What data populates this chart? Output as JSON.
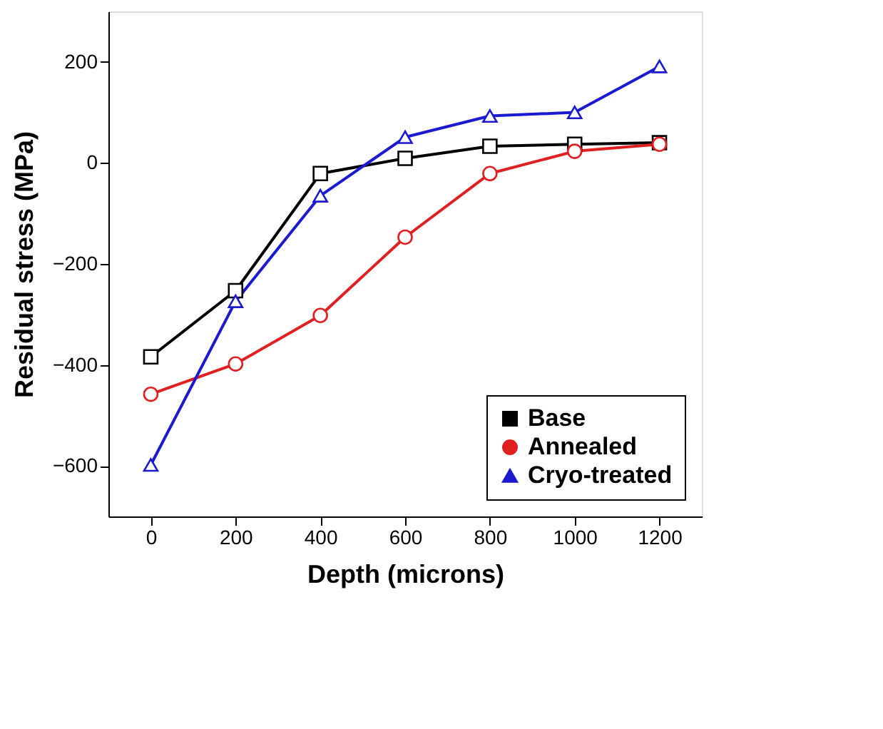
{
  "chart_data": {
    "type": "line",
    "xlabel": "Depth (microns)",
    "ylabel": "Residual stress (MPa)",
    "x": [
      0,
      200,
      400,
      600,
      800,
      1000,
      1200
    ],
    "xlim": [
      -100,
      1300
    ],
    "xticks": [
      0,
      200,
      400,
      600,
      800,
      1000,
      1200
    ],
    "ylim": [
      -700,
      300
    ],
    "yticks": [
      -600,
      -400,
      -200,
      0,
      200
    ],
    "grid": false,
    "legend": "bottom right",
    "line_style": "solid",
    "series": [
      {
        "name": "Base",
        "color": "#000000",
        "marker": "square",
        "values": [
          -384,
          -253,
          -21,
          9,
          33,
          37,
          40
        ]
      },
      {
        "name": "Annealed",
        "color": "#e02020",
        "marker": "circle",
        "values": [
          -458,
          -398,
          -302,
          -147,
          -21,
          23,
          37
        ]
      },
      {
        "name": "Cryo-treated",
        "color": "#1a1ad0",
        "marker": "triangle",
        "values": [
          -598,
          -274,
          -65,
          51,
          93,
          100,
          191
        ]
      }
    ]
  }
}
